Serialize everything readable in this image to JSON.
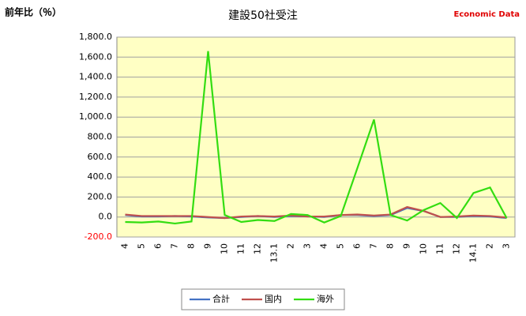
{
  "chart_data": {
    "type": "line",
    "title": "建設50社受注",
    "y_label": "前年比（％）",
    "source": "Economic Data",
    "categories": [
      "4",
      "5",
      "6",
      "7",
      "8",
      "9",
      "10",
      "11",
      "12",
      "13.1",
      "2",
      "3",
      "4",
      "5",
      "6",
      "7",
      "8",
      "9",
      "10",
      "11",
      "12",
      "14.1",
      "2",
      "3"
    ],
    "series": [
      {
        "name": "合計",
        "color": "#4472c4",
        "values": [
          20,
          5,
          5,
          10,
          5,
          -5,
          -10,
          0,
          10,
          0,
          10,
          5,
          0,
          20,
          20,
          10,
          20,
          90,
          60,
          0,
          0,
          10,
          5,
          -10
        ]
      },
      {
        "name": "国内",
        "color": "#c0504d",
        "values": [
          25,
          10,
          10,
          10,
          10,
          0,
          -10,
          5,
          10,
          5,
          15,
          5,
          5,
          20,
          25,
          15,
          25,
          100,
          60,
          0,
          5,
          15,
          10,
          -5
        ]
      },
      {
        "name": "海外",
        "color": "#33dd11",
        "values": [
          -50,
          -55,
          -45,
          -65,
          -45,
          1660,
          20,
          -50,
          -30,
          -40,
          30,
          20,
          -55,
          10,
          490,
          975,
          20,
          -35,
          70,
          140,
          -10,
          240,
          295,
          -10
        ]
      }
    ],
    "ylim": [
      -200,
      1800
    ],
    "yticks": [
      {
        "value": -200,
        "label": "-200.0"
      },
      {
        "value": 0,
        "label": "0.0"
      },
      {
        "value": 200,
        "label": "200.0"
      },
      {
        "value": 400,
        "label": "400.0"
      },
      {
        "value": 600,
        "label": "600.0"
      },
      {
        "value": 800,
        "label": "800.0"
      },
      {
        "value": 1000,
        "label": "1,000.0"
      },
      {
        "value": 1200,
        "label": "1,200.0"
      },
      {
        "value": 1400,
        "label": "1,400.0"
      },
      {
        "value": 1600,
        "label": "1,600.0"
      },
      {
        "value": 1800,
        "label": "1,800.0"
      }
    ],
    "negative_tick_color": "#ff0000",
    "plot_background": "#ffffc4",
    "grid": true,
    "legend": "bottom"
  }
}
